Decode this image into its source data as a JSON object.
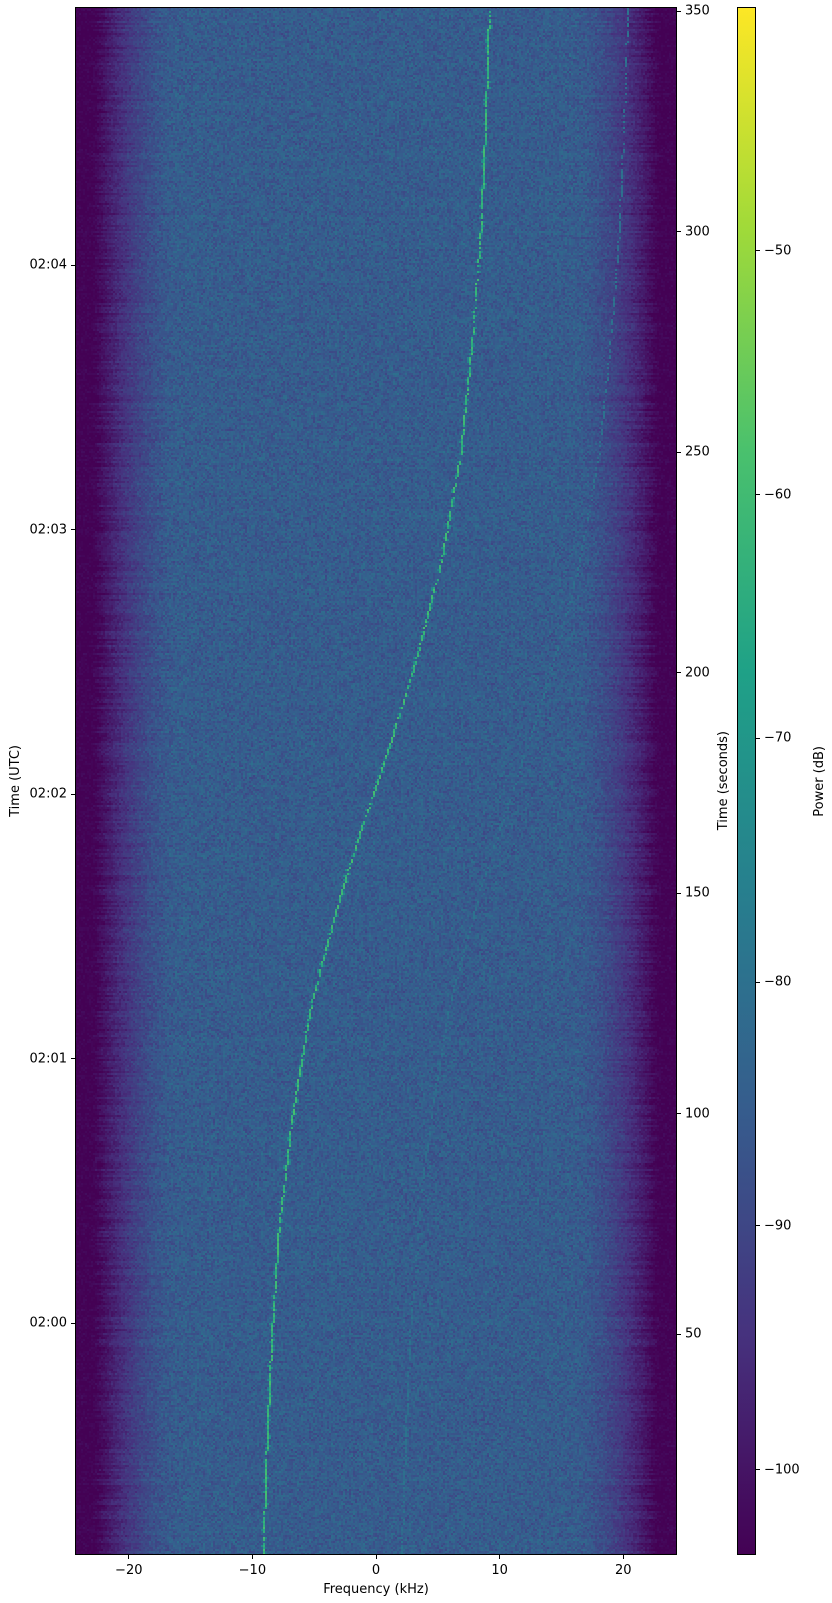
{
  "chart_data": {
    "type": "heatmap",
    "subtype": "spectrogram-waterfall",
    "title": "",
    "xlabel": "Frequency (kHz)",
    "ylabel": "Time (UTC)",
    "ylabel_right": "Time (seconds)",
    "colorbar_label": "Power (dB)",
    "grid": false,
    "xlim_khz": [
      -24.35,
      24.35
    ],
    "x_ticks": [
      {
        "value": -20,
        "label": "−20"
      },
      {
        "value": -10,
        "label": "−10"
      },
      {
        "value": 0,
        "label": "0"
      },
      {
        "value": 10,
        "label": "10"
      },
      {
        "value": 20,
        "label": "20"
      }
    ],
    "time_range_s": [
      0,
      351
    ],
    "right_ticks_s": [
      {
        "value": 50,
        "label": "50"
      },
      {
        "value": 100,
        "label": "100"
      },
      {
        "value": 150,
        "label": "150"
      },
      {
        "value": 200,
        "label": "200"
      },
      {
        "value": 250,
        "label": "250"
      },
      {
        "value": 300,
        "label": "300"
      },
      {
        "value": 350,
        "label": "350"
      }
    ],
    "utc_ticks": [
      {
        "label": "02:00",
        "t_s": 52.5
      },
      {
        "label": "02:01",
        "t_s": 112.5
      },
      {
        "label": "02:02",
        "t_s": 172.5
      },
      {
        "label": "02:03",
        "t_s": 232.5
      },
      {
        "label": "02:04",
        "t_s": 292.5
      }
    ],
    "colorbar": {
      "vmin_db": -103.5,
      "vmax_db": -40,
      "colormap": "viridis",
      "ticks": [
        {
          "value": -50,
          "label": "−50"
        },
        {
          "value": -60,
          "label": "−60"
        },
        {
          "value": -70,
          "label": "−70"
        },
        {
          "value": -80,
          "label": "−80"
        },
        {
          "value": -90,
          "label": "−90"
        },
        {
          "value": -100,
          "label": "−100"
        }
      ],
      "stops": [
        {
          "pos": 0.0,
          "color": "#440154"
        },
        {
          "pos": 0.143,
          "color": "#46327e"
        },
        {
          "pos": 0.286,
          "color": "#365c8d"
        },
        {
          "pos": 0.429,
          "color": "#277f8e"
        },
        {
          "pos": 0.571,
          "color": "#1fa187"
        },
        {
          "pos": 0.714,
          "color": "#4ac16d"
        },
        {
          "pos": 0.857,
          "color": "#a0da39"
        },
        {
          "pos": 1.0,
          "color": "#fde725"
        }
      ]
    },
    "noise": {
      "floor_db": -85.2,
      "sigma_db": 3.1,
      "passband_edge_khz": 16.0,
      "stopband_start_khz": 22.6,
      "stopband_db": -102.8,
      "stop_sigma_db": 1.2
    },
    "main_trace": {
      "power_db": -61,
      "points_t_f": [
        [
          0,
          -9.1
        ],
        [
          25,
          -8.8
        ],
        [
          50,
          -8.4
        ],
        [
          75,
          -7.8
        ],
        [
          100,
          -6.7
        ],
        [
          125,
          -5.2
        ],
        [
          150,
          -2.8
        ],
        [
          165,
          -1.1
        ],
        [
          174,
          0.0
        ],
        [
          185,
          1.3
        ],
        [
          200,
          3.0
        ],
        [
          225,
          5.3
        ],
        [
          250,
          6.9
        ],
        [
          275,
          7.8
        ],
        [
          300,
          8.5
        ],
        [
          325,
          8.9
        ],
        [
          351,
          9.2
        ]
      ]
    },
    "secondary_trace": {
      "offset_khz": 11.2,
      "power_db": -78.5
    }
  }
}
